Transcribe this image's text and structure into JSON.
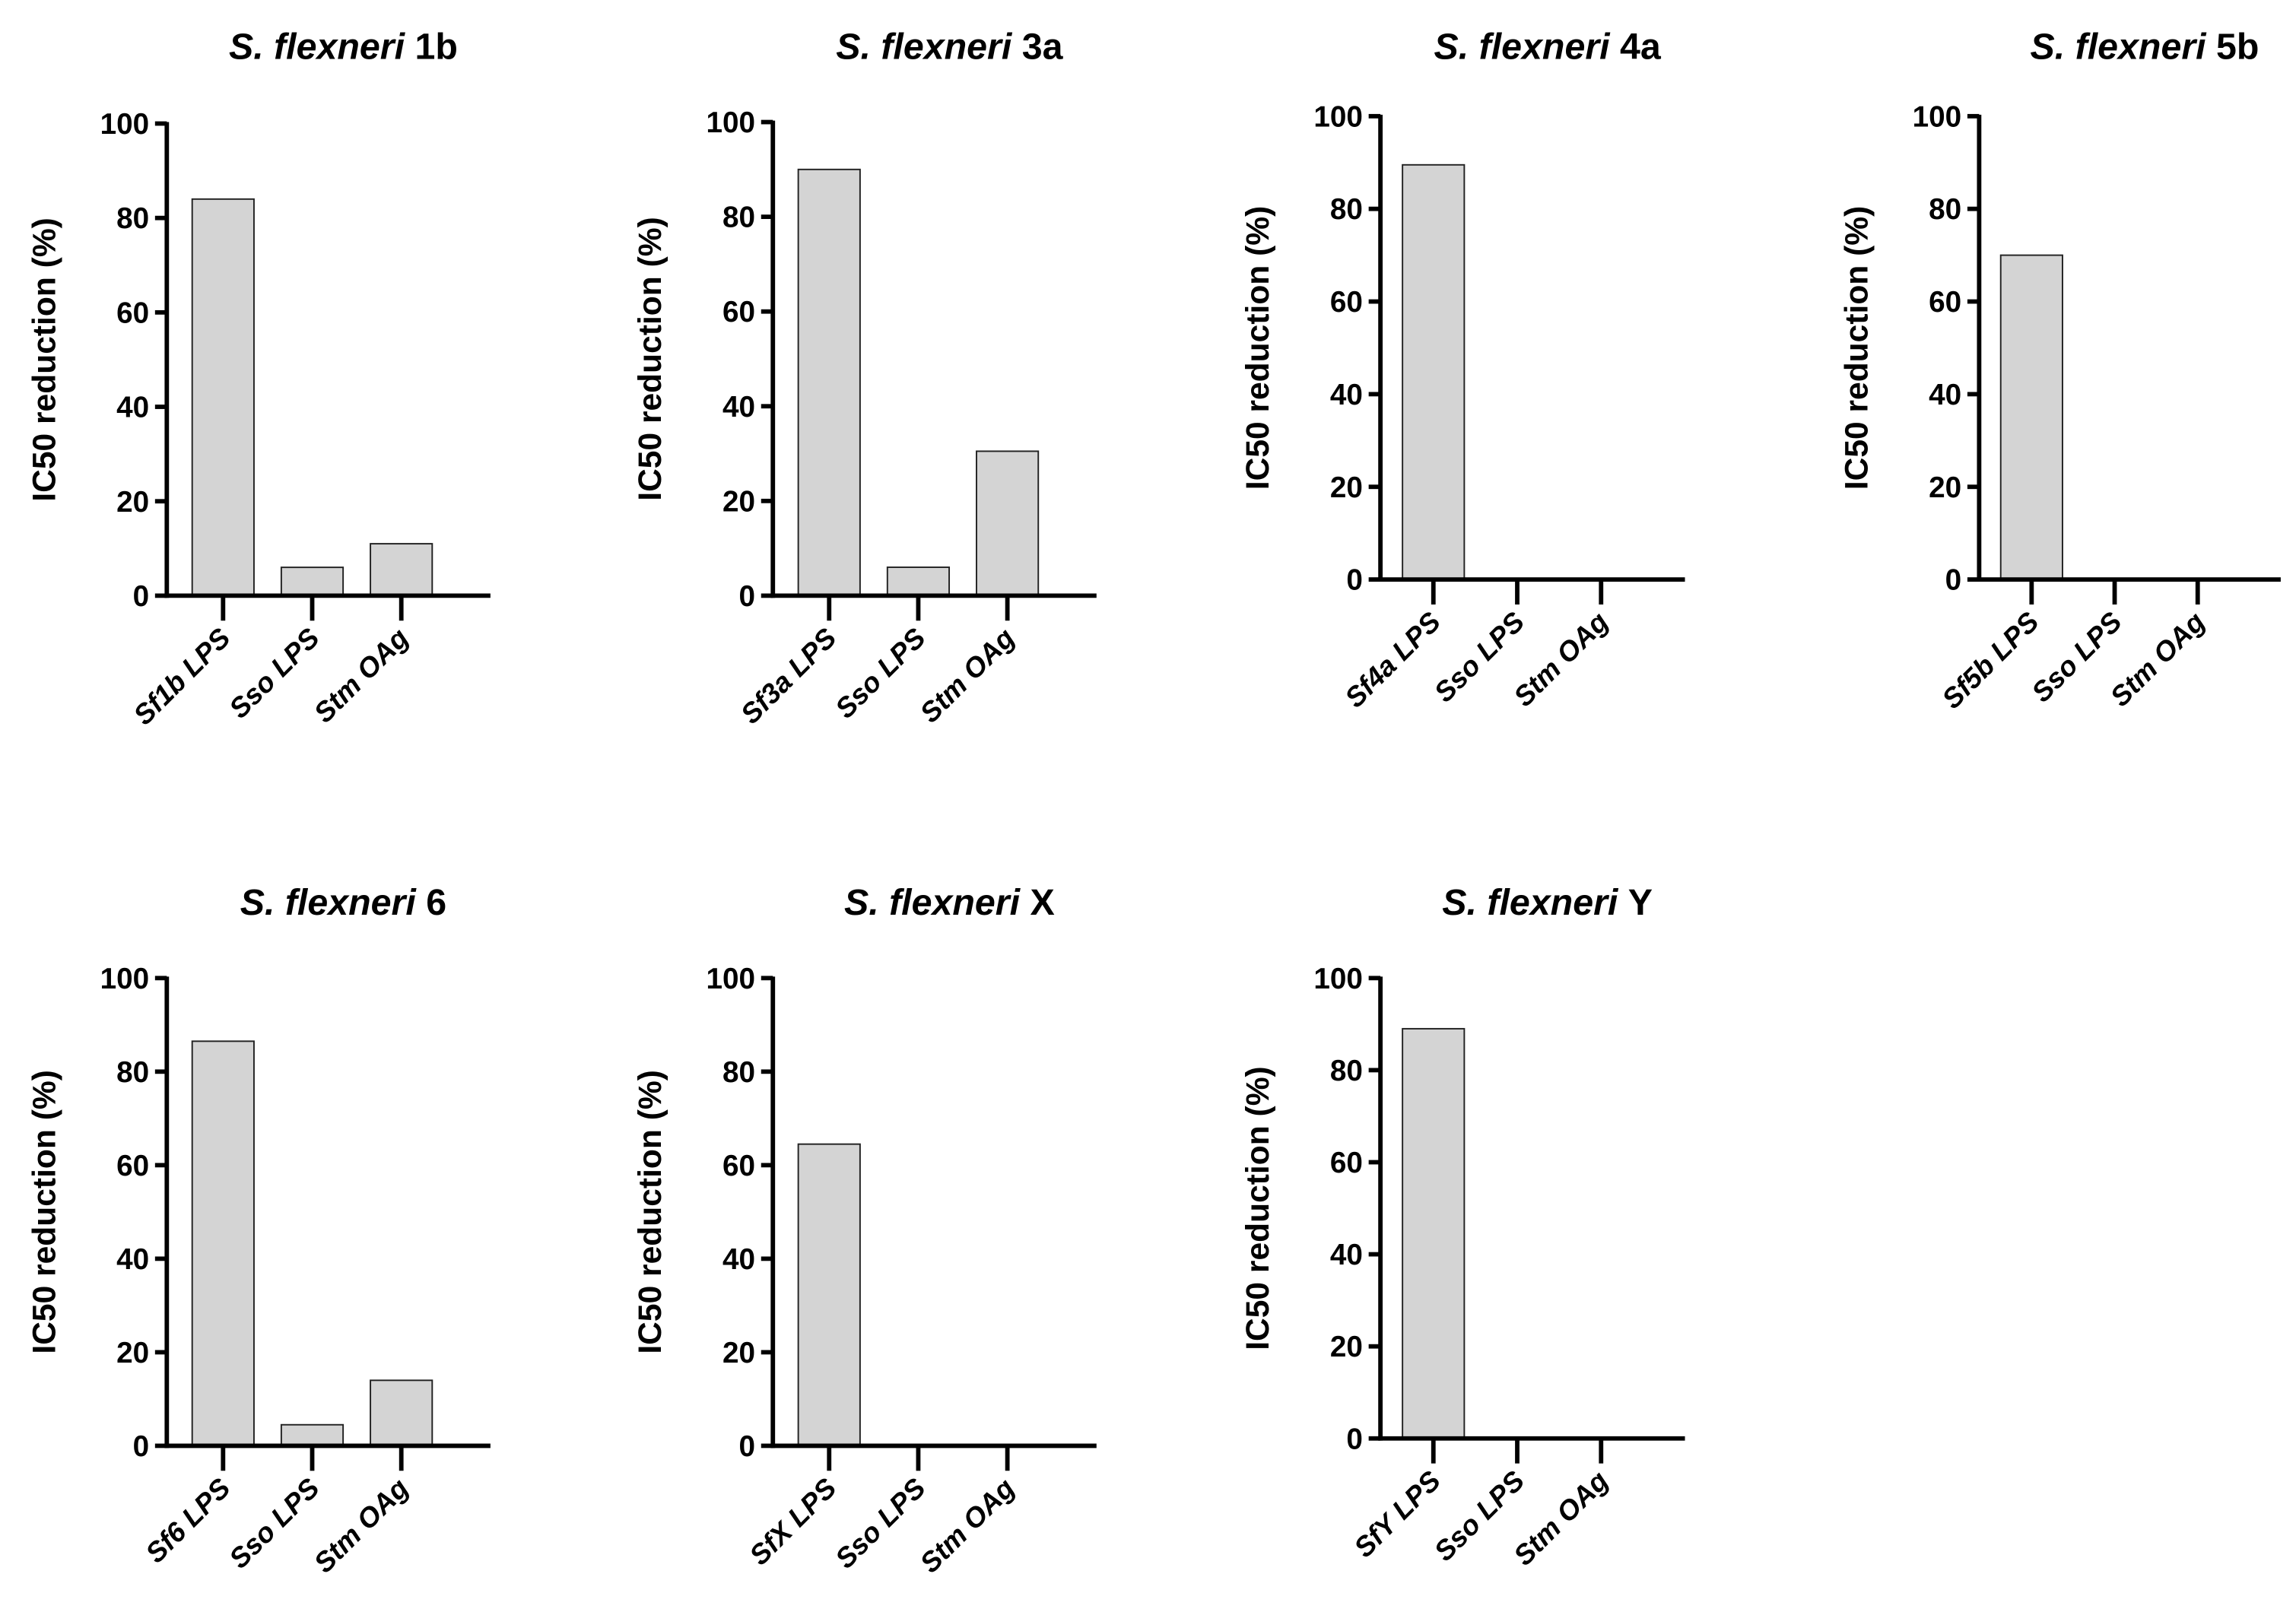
{
  "chart_data": [
    {
      "type": "bar",
      "title_italic": "S. flexneri",
      "title_suffix": "1b",
      "categories": [
        "Sf1b LPS",
        "Sso LPS",
        "Stm OAg"
      ],
      "values": [
        84,
        6,
        11
      ],
      "ylabel": "IC50 reduction (%)",
      "ylim": [
        0,
        100
      ],
      "yticks": [
        "0",
        "20",
        "40",
        "60",
        "80",
        "100"
      ],
      "grid": false
    },
    {
      "type": "bar",
      "title_italic": "S. flexneri",
      "title_suffix": "3a",
      "categories": [
        "Sf3a LPS",
        "Sso LPS",
        "Stm OAg"
      ],
      "values": [
        90,
        6,
        30.5
      ],
      "ylabel": "IC50 reduction (%)",
      "ylim": [
        0,
        100
      ],
      "yticks": [
        "0",
        "20",
        "40",
        "60",
        "80",
        "100"
      ],
      "grid": false
    },
    {
      "type": "bar",
      "title_italic": "S. flexneri",
      "title_suffix": "4a",
      "categories": [
        "Sf4a LPS",
        "Sso LPS",
        "Stm OAg"
      ],
      "values": [
        89.5,
        0,
        0
      ],
      "ylabel": "IC50 reduction (%)",
      "ylim": [
        0,
        100
      ],
      "yticks": [
        "0",
        "20",
        "40",
        "60",
        "80",
        "100"
      ],
      "grid": false
    },
    {
      "type": "bar",
      "title_italic": "S. flexneri",
      "title_suffix": "5b",
      "categories": [
        "Sf5b LPS",
        "Sso LPS",
        "Stm OAg"
      ],
      "values": [
        70,
        0,
        0
      ],
      "ylabel": "IC50 reduction (%)",
      "ylim": [
        0,
        100
      ],
      "yticks": [
        "0",
        "20",
        "40",
        "60",
        "80",
        "100"
      ],
      "grid": false
    },
    {
      "type": "bar",
      "title_italic": "S. flexneri",
      "title_suffix": "6",
      "categories": [
        "Sf6 LPS",
        "Sso LPS",
        "Stm OAg"
      ],
      "values": [
        86.5,
        4.5,
        14
      ],
      "ylabel": "IC50 reduction (%)",
      "ylim": [
        0,
        100
      ],
      "yticks": [
        "0",
        "20",
        "40",
        "60",
        "80",
        "100"
      ],
      "grid": false
    },
    {
      "type": "bar",
      "title_italic": "S. flexneri",
      "title_suffix": "X",
      "categories": [
        "SfX LPS",
        "Sso LPS",
        "Stm OAg"
      ],
      "values": [
        64.5,
        0,
        0
      ],
      "ylabel": "IC50 reduction (%)",
      "ylim": [
        0,
        100
      ],
      "yticks": [
        "0",
        "20",
        "40",
        "60",
        "80",
        "100"
      ],
      "grid": false
    },
    {
      "type": "bar",
      "title_italic": "S. flexneri",
      "title_suffix": "Y",
      "categories": [
        "SfY LPS",
        "Sso LPS",
        "Stm OAg"
      ],
      "values": [
        89,
        0,
        0
      ],
      "ylabel": "IC50 reduction (%)",
      "ylim": [
        0,
        100
      ],
      "yticks": [
        "0",
        "20",
        "40",
        "60",
        "80",
        "100"
      ],
      "grid": false
    }
  ],
  "colors": {
    "bar_fill": "#d4d4d4",
    "bar_stroke": "#222222",
    "axis": "#000000"
  }
}
